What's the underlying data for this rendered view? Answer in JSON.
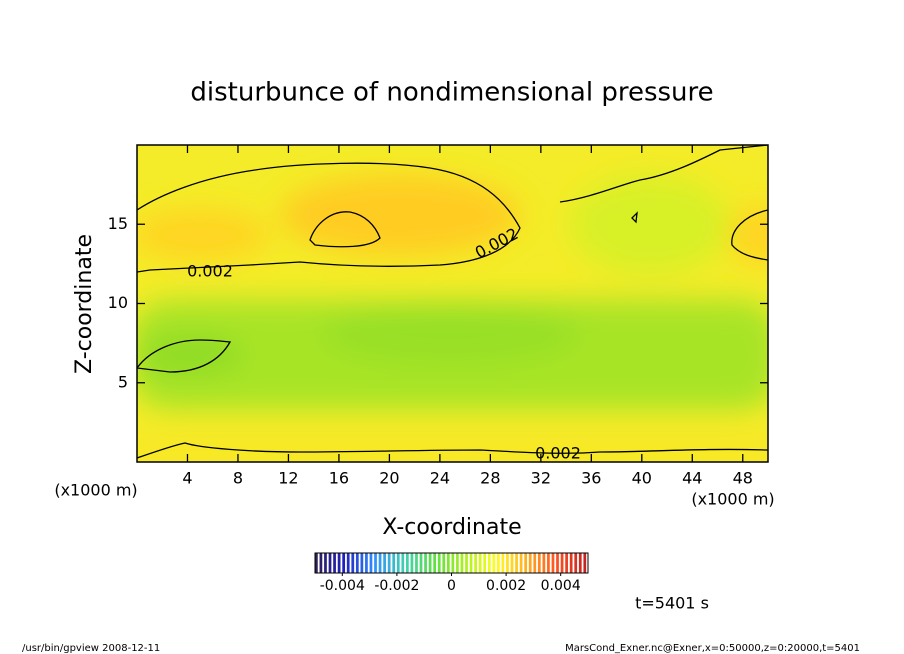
{
  "chart_data": {
    "type": "contour",
    "title": "disturbunce of nondimensional pressure",
    "xlabel": "X-coordinate",
    "ylabel": "Z-coordinate",
    "xunit": "(x1000 m)",
    "xlim": [
      0,
      50
    ],
    "xticks": [
      4,
      8,
      12,
      16,
      20,
      24,
      28,
      32,
      36,
      40,
      44,
      48
    ],
    "ylim": [
      0,
      20
    ],
    "yticks": [
      5,
      10,
      15
    ],
    "contour_labels": [
      0.002,
      0.002,
      0.002
    ],
    "clim": [
      -0.005,
      0.005
    ],
    "cticks": [
      -0.004,
      -0.002,
      0,
      0.002,
      0.004
    ],
    "colormap": [
      "#302050",
      "#2020c0",
      "#3090ff",
      "#40d0b0",
      "#60e040",
      "#b0f020",
      "#ffff20",
      "#ffb020",
      "#ff5020",
      "#c02020"
    ],
    "annotation": "t=5401 s",
    "footer_left": "/usr/bin/gpview   2008-12-11",
    "footer_right": "MarsCond_Exner.nc@Exner,x=0:50000,z=0:20000,t=5401"
  }
}
